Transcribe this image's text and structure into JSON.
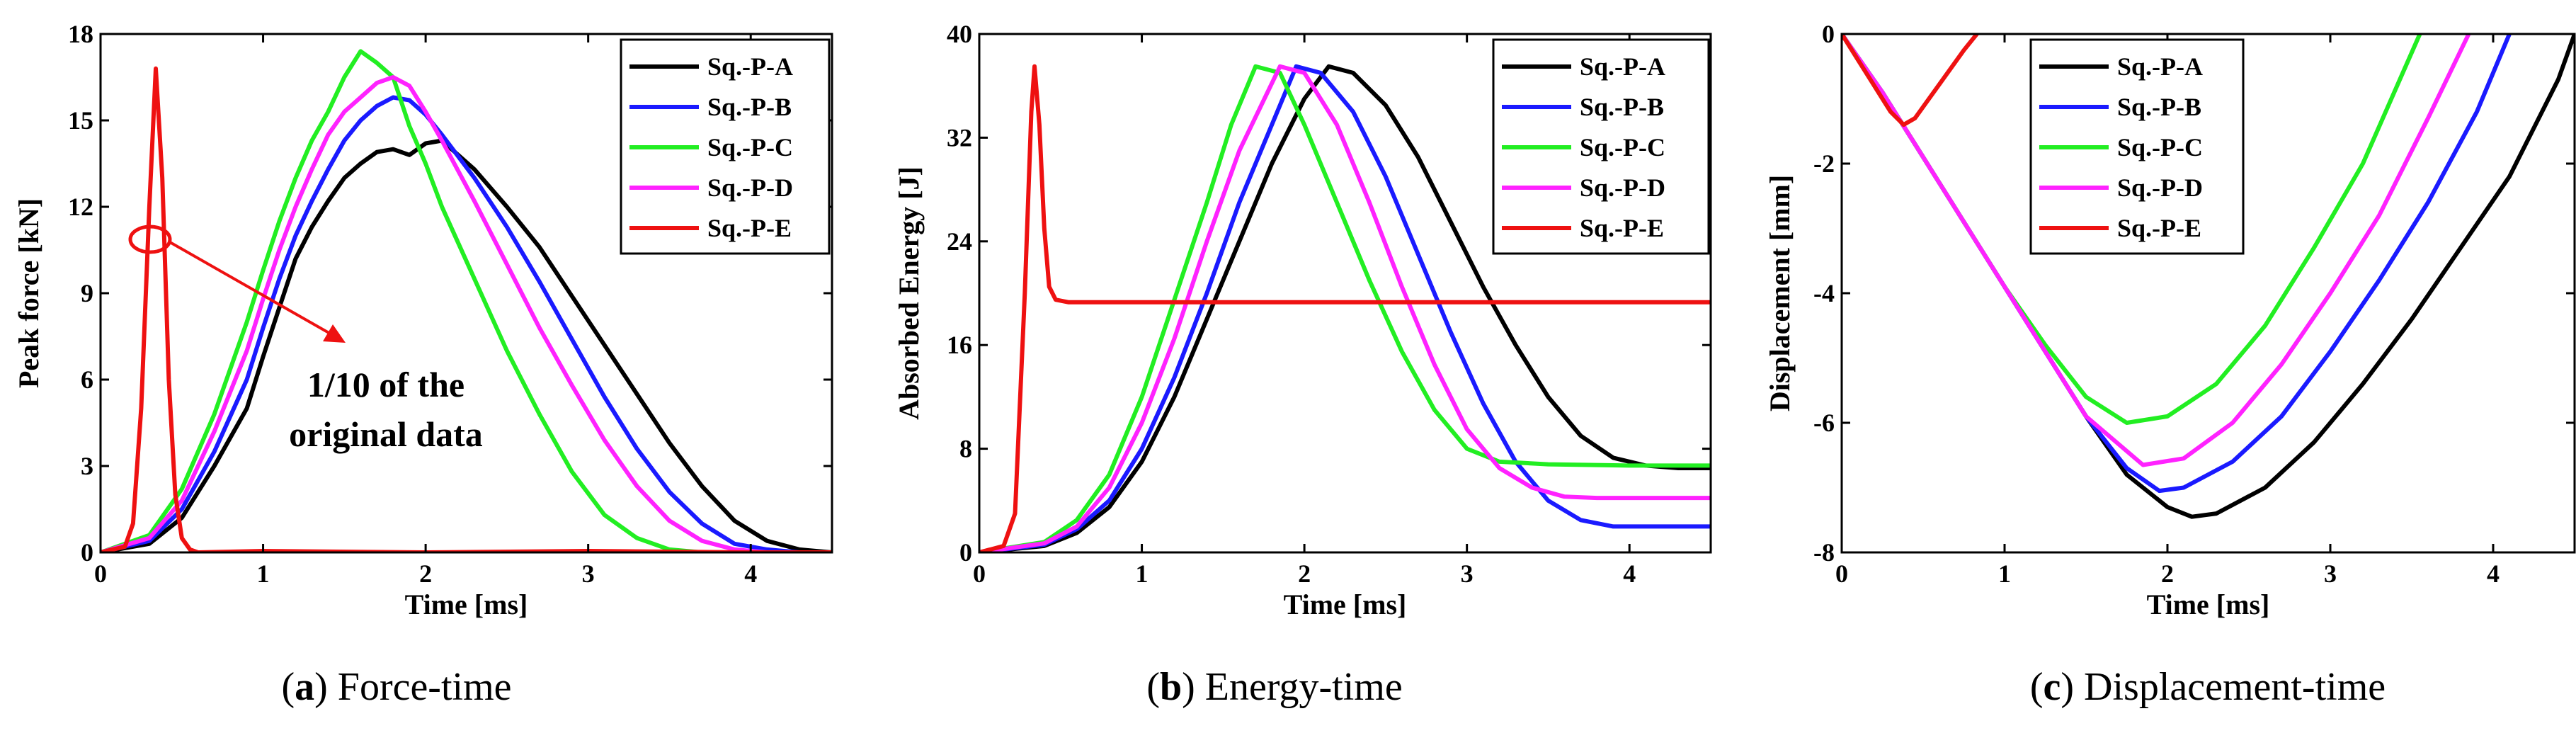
{
  "figure": {
    "colors": {
      "Sq.-P-A": "#000000",
      "Sq.-P-B": "#1a1aff",
      "Sq.-P-C": "#22ee22",
      "Sq.-P-D": "#ff22ff",
      "Sq.-P-E": "#ee1111"
    }
  },
  "chart_data": [
    {
      "type": "line",
      "caption_letter": "a",
      "caption_text": " Force-time",
      "xlabel": "Time [ms]",
      "ylabel": "Peak force [kN]",
      "xlim": [
        0,
        4.5
      ],
      "ylim": [
        0,
        18
      ],
      "xticks": [
        0,
        1,
        2,
        3,
        4
      ],
      "yticks": [
        0,
        3,
        6,
        9,
        12,
        15,
        18
      ],
      "legend_position": "top-right",
      "annotation": [
        "1/10 of the",
        "original data"
      ],
      "series": [
        {
          "name": "Sq.-P-A",
          "x": [
            0,
            0.3,
            0.5,
            0.7,
            0.9,
            1.0,
            1.1,
            1.2,
            1.3,
            1.4,
            1.5,
            1.6,
            1.7,
            1.8,
            1.9,
            2.0,
            2.1,
            2.2,
            2.3,
            2.5,
            2.7,
            2.9,
            3.1,
            3.3,
            3.5,
            3.7,
            3.9,
            4.1,
            4.3,
            4.5
          ],
          "y": [
            0,
            0.3,
            1.2,
            3.0,
            5.0,
            6.8,
            8.5,
            10.2,
            11.3,
            12.2,
            13.0,
            13.5,
            13.9,
            14.0,
            13.8,
            14.2,
            14.3,
            13.8,
            13.3,
            12.0,
            10.6,
            8.9,
            7.2,
            5.5,
            3.8,
            2.3,
            1.1,
            0.4,
            0.1,
            0
          ]
        },
        {
          "name": "Sq.-P-B",
          "x": [
            0,
            0.3,
            0.5,
            0.7,
            0.9,
            1.0,
            1.1,
            1.2,
            1.3,
            1.4,
            1.5,
            1.6,
            1.7,
            1.8,
            1.9,
            2.0,
            2.1,
            2.3,
            2.5,
            2.7,
            2.9,
            3.1,
            3.3,
            3.5,
            3.7,
            3.9,
            4.1,
            4.3
          ],
          "y": [
            0,
            0.4,
            1.5,
            3.5,
            6.0,
            7.8,
            9.5,
            11.0,
            12.2,
            13.3,
            14.3,
            15.0,
            15.5,
            15.8,
            15.7,
            15.2,
            14.5,
            13.0,
            11.3,
            9.4,
            7.4,
            5.4,
            3.6,
            2.1,
            1.0,
            0.3,
            0.1,
            0
          ]
        },
        {
          "name": "Sq.-P-C",
          "x": [
            0,
            0.3,
            0.5,
            0.7,
            0.9,
            1.0,
            1.1,
            1.2,
            1.3,
            1.4,
            1.5,
            1.6,
            1.7,
            1.8,
            1.9,
            2.0,
            2.1,
            2.3,
            2.5,
            2.7,
            2.9,
            3.1,
            3.3,
            3.5,
            3.7
          ],
          "y": [
            0,
            0.6,
            2.2,
            4.8,
            8.0,
            9.8,
            11.5,
            13.0,
            14.3,
            15.3,
            16.5,
            17.4,
            17.0,
            16.5,
            14.8,
            13.5,
            12.0,
            9.5,
            7.0,
            4.8,
            2.8,
            1.3,
            0.5,
            0.1,
            0
          ]
        },
        {
          "name": "Sq.-P-D",
          "x": [
            0,
            0.3,
            0.5,
            0.7,
            0.9,
            1.0,
            1.1,
            1.2,
            1.3,
            1.4,
            1.5,
            1.6,
            1.7,
            1.8,
            1.9,
            2.0,
            2.1,
            2.3,
            2.5,
            2.7,
            2.9,
            3.1,
            3.3,
            3.5,
            3.7,
            3.9,
            4.1
          ],
          "y": [
            0,
            0.5,
            1.8,
            4.2,
            7.0,
            8.8,
            10.5,
            12.0,
            13.3,
            14.5,
            15.3,
            15.8,
            16.3,
            16.5,
            16.2,
            15.3,
            14.3,
            12.2,
            10.0,
            7.8,
            5.8,
            3.9,
            2.3,
            1.1,
            0.4,
            0.1,
            0
          ]
        },
        {
          "name": "Sq.-P-E",
          "x": [
            0,
            0.15,
            0.2,
            0.25,
            0.3,
            0.34,
            0.38,
            0.42,
            0.46,
            0.5,
            0.55,
            0.6,
            1.0,
            2.0,
            3.0,
            4.0,
            4.5
          ],
          "y": [
            0,
            0.2,
            1.0,
            5.0,
            12.0,
            16.8,
            13.0,
            6.0,
            2.0,
            0.5,
            0.1,
            0,
            0.05,
            0,
            0.05,
            0,
            0
          ]
        }
      ]
    },
    {
      "type": "line",
      "caption_letter": "b",
      "caption_text": " Energy-time",
      "xlabel": "Time [ms]",
      "ylabel": "Absorbed Energy [J]",
      "xlim": [
        0,
        4.5
      ],
      "ylim": [
        0,
        40
      ],
      "xticks": [
        0,
        1,
        2,
        3,
        4
      ],
      "yticks": [
        0,
        8,
        16,
        24,
        32,
        40
      ],
      "legend_position": "top-right",
      "series": [
        {
          "name": "Sq.-P-A",
          "x": [
            0,
            0.4,
            0.6,
            0.8,
            1.0,
            1.2,
            1.4,
            1.6,
            1.8,
            2.0,
            2.15,
            2.3,
            2.5,
            2.7,
            2.9,
            3.1,
            3.3,
            3.5,
            3.7,
            3.9,
            4.1,
            4.3,
            4.5
          ],
          "y": [
            0,
            0.5,
            1.5,
            3.5,
            7.0,
            12.0,
            18.0,
            24.0,
            30.0,
            35.0,
            37.5,
            37.0,
            34.5,
            30.5,
            25.5,
            20.5,
            16.0,
            12.0,
            9.0,
            7.3,
            6.7,
            6.5,
            6.5
          ]
        },
        {
          "name": "Sq.-P-B",
          "x": [
            0,
            0.4,
            0.6,
            0.8,
            1.0,
            1.2,
            1.4,
            1.6,
            1.8,
            1.95,
            2.1,
            2.3,
            2.5,
            2.7,
            2.9,
            3.1,
            3.3,
            3.5,
            3.7,
            3.9,
            4.1,
            4.3,
            4.5
          ],
          "y": [
            0,
            0.6,
            1.8,
            4.0,
            8.0,
            13.5,
            20.0,
            27.0,
            33.0,
            37.5,
            37.0,
            34.0,
            29.0,
            23.0,
            17.0,
            11.5,
            7.0,
            4.0,
            2.5,
            2.0,
            2.0,
            2.0,
            2.0
          ]
        },
        {
          "name": "Sq.-P-C",
          "x": [
            0,
            0.4,
            0.6,
            0.8,
            1.0,
            1.2,
            1.4,
            1.55,
            1.7,
            1.85,
            2.0,
            2.2,
            2.4,
            2.6,
            2.8,
            3.0,
            3.2,
            3.5,
            4.0,
            4.5
          ],
          "y": [
            0,
            0.8,
            2.5,
            6.0,
            12.0,
            19.5,
            27.0,
            33.0,
            37.5,
            37.0,
            33.0,
            27.0,
            21.0,
            15.5,
            11.0,
            8.0,
            7.0,
            6.8,
            6.7,
            6.7
          ]
        },
        {
          "name": "Sq.-P-D",
          "x": [
            0,
            0.4,
            0.6,
            0.8,
            1.0,
            1.2,
            1.4,
            1.6,
            1.85,
            2.0,
            2.2,
            2.4,
            2.6,
            2.8,
            3.0,
            3.2,
            3.4,
            3.6,
            3.8,
            4.0,
            4.5
          ],
          "y": [
            0,
            0.7,
            2.0,
            5.0,
            10.0,
            16.5,
            24.0,
            31.0,
            37.5,
            37.0,
            33.0,
            27.0,
            20.5,
            14.5,
            9.5,
            6.5,
            5.0,
            4.3,
            4.2,
            4.2,
            4.2
          ]
        },
        {
          "name": "Sq.-P-E",
          "x": [
            0,
            0.15,
            0.22,
            0.28,
            0.32,
            0.34,
            0.37,
            0.4,
            0.43,
            0.47,
            0.55,
            1.0,
            2.0,
            3.0,
            4.0,
            4.5
          ],
          "y": [
            0,
            0.5,
            3.0,
            20.0,
            34.0,
            37.5,
            33.0,
            25.0,
            20.5,
            19.5,
            19.3,
            19.3,
            19.3,
            19.3,
            19.3,
            19.3
          ]
        }
      ]
    },
    {
      "type": "line",
      "caption_letter": "c",
      "caption_text": " Displacement-time",
      "xlabel": "Time [ms]",
      "ylabel": "Displacement [mm]",
      "xlim": [
        0,
        4.5
      ],
      "ylim": [
        -8,
        0
      ],
      "xticks": [
        0,
        1,
        2,
        3,
        4
      ],
      "yticks": [
        -8,
        -6,
        -4,
        -2,
        0
      ],
      "legend_position": "top-left",
      "series": [
        {
          "name": "Sq.-P-A",
          "x": [
            0,
            0.25,
            0.5,
            0.75,
            1.0,
            1.25,
            1.5,
            1.75,
            2.0,
            2.15,
            2.3,
            2.6,
            2.9,
            3.2,
            3.5,
            3.8,
            4.1,
            4.4,
            4.5
          ],
          "y": [
            0,
            -0.9,
            -1.9,
            -2.9,
            -3.9,
            -4.9,
            -5.9,
            -6.8,
            -7.3,
            -7.45,
            -7.4,
            -7.0,
            -6.3,
            -5.4,
            -4.4,
            -3.3,
            -2.2,
            -0.7,
            0
          ]
        },
        {
          "name": "Sq.-P-B",
          "x": [
            0,
            0.25,
            0.5,
            0.75,
            1.0,
            1.25,
            1.5,
            1.75,
            1.95,
            2.1,
            2.4,
            2.7,
            3.0,
            3.3,
            3.6,
            3.9,
            4.1
          ],
          "y": [
            0,
            -0.9,
            -1.9,
            -2.9,
            -3.9,
            -4.9,
            -5.9,
            -6.7,
            -7.05,
            -7.0,
            -6.6,
            -5.9,
            -4.9,
            -3.8,
            -2.6,
            -1.2,
            0
          ]
        },
        {
          "name": "Sq.-P-C",
          "x": [
            0,
            0.25,
            0.5,
            0.75,
            1.0,
            1.25,
            1.5,
            1.75,
            2.0,
            2.3,
            2.6,
            2.9,
            3.2,
            3.55
          ],
          "y": [
            0,
            -0.9,
            -1.9,
            -2.9,
            -3.9,
            -4.8,
            -5.6,
            -6.0,
            -5.9,
            -5.4,
            -4.5,
            -3.3,
            -2.0,
            0
          ]
        },
        {
          "name": "Sq.-P-D",
          "x": [
            0,
            0.25,
            0.5,
            0.75,
            1.0,
            1.25,
            1.5,
            1.85,
            2.1,
            2.4,
            2.7,
            3.0,
            3.3,
            3.6,
            3.85
          ],
          "y": [
            0,
            -0.9,
            -1.9,
            -2.9,
            -3.9,
            -4.9,
            -5.9,
            -6.65,
            -6.55,
            -6.0,
            -5.1,
            -4.0,
            -2.8,
            -1.3,
            0
          ]
        },
        {
          "name": "Sq.-P-E",
          "x": [
            0,
            0.1,
            0.2,
            0.3,
            0.38,
            0.45,
            0.55,
            0.65,
            0.75,
            0.83
          ],
          "y": [
            0,
            -0.4,
            -0.8,
            -1.2,
            -1.4,
            -1.3,
            -0.95,
            -0.6,
            -0.25,
            0
          ]
        }
      ]
    }
  ]
}
